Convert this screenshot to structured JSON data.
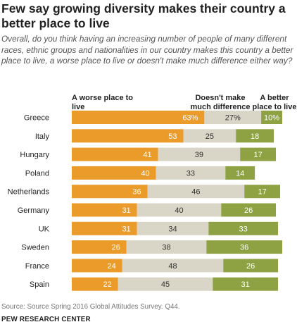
{
  "title": "Few say growing diversity makes their country a better place to live",
  "subtitle": "Overall, do you think having an increasing number of people of many different races, ethnic groups and nationalities in our country makes this country a better place to live, a worse place to live or doesn't make much difference either way?",
  "legend": {
    "worse": "A worse place to live",
    "nodiff": "Doesn't make much difference",
    "better": "A better place to live"
  },
  "source": "Source: Source Spring 2016 Global Attitudes Survey. Q44.",
  "brand": "PEW RESEARCH CENTER",
  "colors": {
    "worse": "#eb9b29",
    "nodiff": "#d9d6c7",
    "better": "#8ea143"
  },
  "chart_data": {
    "type": "bar",
    "stacked": true,
    "orientation": "horizontal",
    "categories": [
      "Greece",
      "Italy",
      "Hungary",
      "Poland",
      "Netherlands",
      "Germany",
      "UK",
      "Sweden",
      "France",
      "Spain"
    ],
    "series": [
      {
        "name": "A worse place to live",
        "values": [
          63,
          53,
          41,
          40,
          36,
          31,
          31,
          26,
          24,
          22
        ],
        "labels": [
          "63%",
          "53",
          "41",
          "40",
          "36",
          "31",
          "31",
          "26",
          "24",
          "22"
        ]
      },
      {
        "name": "Doesn't make much difference",
        "values": [
          27,
          25,
          39,
          33,
          46,
          40,
          34,
          38,
          48,
          45
        ],
        "labels": [
          "27%",
          "25",
          "39",
          "33",
          "46",
          "40",
          "34",
          "38",
          "48",
          "45"
        ]
      },
      {
        "name": "A better place to live",
        "values": [
          10,
          18,
          17,
          14,
          17,
          26,
          33,
          36,
          26,
          31
        ],
        "labels": [
          "10%",
          "18",
          "17",
          "14",
          "17",
          "26",
          "33",
          "36",
          "26",
          "31"
        ]
      }
    ]
  }
}
